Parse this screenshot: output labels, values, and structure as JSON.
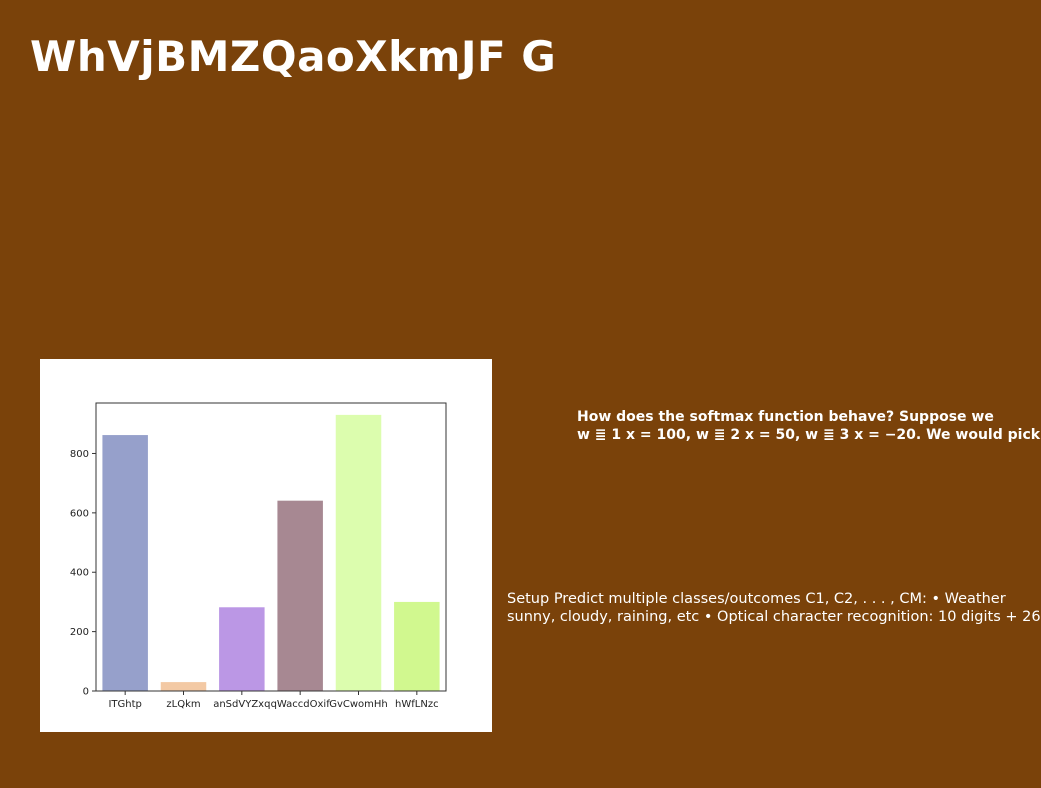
{
  "slide": {
    "title": "WhVjBMZQaoXkmJF G",
    "question_lines": [
      "How does the softmax function behave? Suppose we",
      "w ≣ 1 x = 100, w ≣ 2 x = 50, w ≣ 3 x = −20. We would pick"
    ],
    "setup_lines": [
      "Setup Predict multiple classes/outcomes C1, C2, . . . , CM: • Weather",
      "sunny, cloudy, raining, etc • Optical character recognition: 10 digits + 26"
    ]
  },
  "chart_data": {
    "type": "bar",
    "categories": [
      "ITGhtp",
      "zLQkm",
      "anSdVYZxq",
      "qWaccdOxif",
      "GvCwomHh",
      "hWfLNzc"
    ],
    "values": [
      862,
      30,
      282,
      641,
      930,
      300
    ],
    "colors": [
      "#96a0cb",
      "#f3c9a4",
      "#bb97e5",
      "#a78892",
      "#dcfdae",
      "#d1f88f"
    ],
    "ylim": [
      0,
      970
    ],
    "yticks": [
      0,
      200,
      400,
      600,
      800
    ],
    "title": "",
    "xlabel": "",
    "ylabel": "",
    "grid": false
  }
}
